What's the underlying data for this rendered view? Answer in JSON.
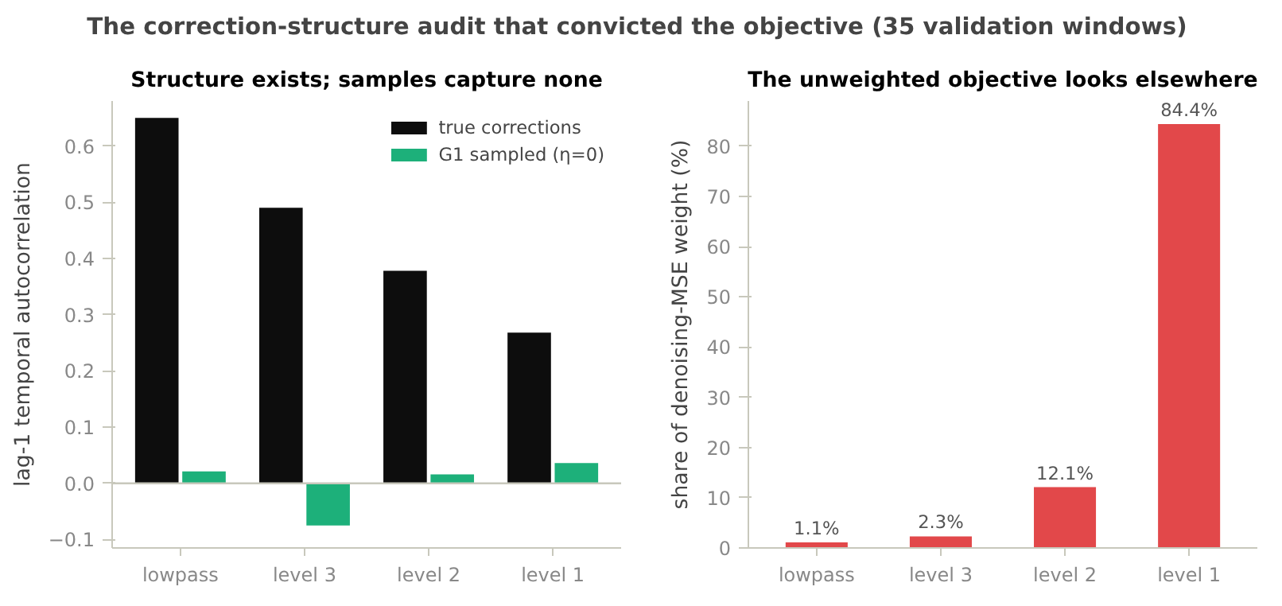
{
  "chart_data": [
    {
      "type": "other",
      "title": "The correction-structure audit that convicted the objective (35 validation windows)"
    },
    {
      "type": "bar",
      "title": "Structure exists; samples capture none",
      "ylabel": "lag-1 temporal autocorrelation",
      "categories": [
        "lowpass",
        "level 3",
        "level 2",
        "level 1"
      ],
      "series": [
        {
          "name": "true corrections",
          "color": "#0d0d0d",
          "values": [
            0.65,
            0.49,
            0.378,
            0.268
          ]
        },
        {
          "name": "G1 sampled (η=0)",
          "color": "#1db07a",
          "values": [
            0.021,
            -0.075,
            0.016,
            0.036
          ]
        }
      ],
      "ylim": [
        -0.115,
        0.68
      ],
      "yticks": [
        {
          "value": -0.1,
          "label": "−0.1"
        },
        {
          "value": 0.0,
          "label": "0.0"
        },
        0.1,
        0.2,
        0.3,
        0.4,
        0.5,
        0.6
      ],
      "ref_lines": [
        {
          "axis": "y",
          "value": 0,
          "color": "#c8c8bc"
        }
      ],
      "legend": "top right",
      "grid": false
    },
    {
      "type": "bar",
      "title": "The unweighted objective looks elsewhere",
      "ylabel": "share of denoising-MSE weight (%)",
      "categories": [
        "lowpass",
        "level 3",
        "level 2",
        "level 1"
      ],
      "values": [
        1.1,
        2.3,
        12.1,
        84.4
      ],
      "color": "#e2484a",
      "value_labels": [
        "1.1%",
        "2.3%",
        "12.1%",
        "84.4%"
      ],
      "ylim": [
        0,
        89
      ],
      "yticks": [
        0,
        10,
        20,
        30,
        40,
        50,
        60,
        70,
        80
      ],
      "grid": false
    }
  ]
}
